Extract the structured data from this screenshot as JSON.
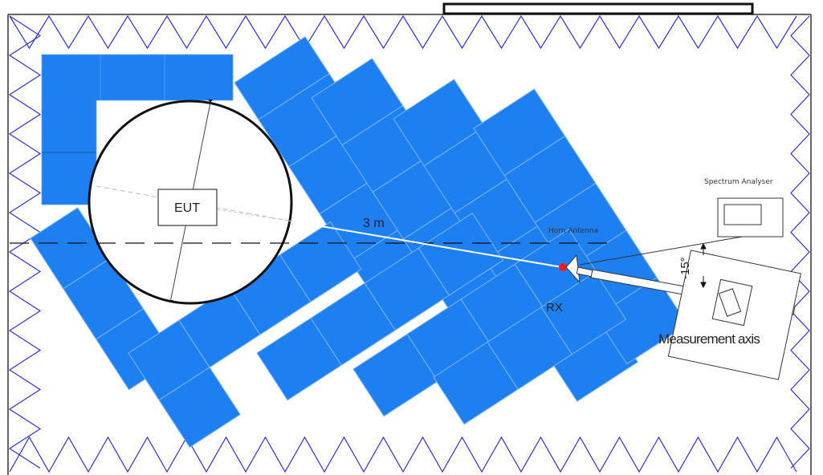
{
  "labels": {
    "eut": "EUT",
    "distance": "3 m",
    "horn_antenna": "Horn Antenna",
    "spectrum_analyser": "Spectrum Analyser",
    "rx": "RX",
    "angle": "-15°",
    "measurement_axis": "Measurement axis"
  },
  "colors": {
    "absorber_blue": "#1e7ff0",
    "chamber_wedge": "#2a32d8",
    "rx_point": "#ff1a1a",
    "line": "#222222"
  }
}
